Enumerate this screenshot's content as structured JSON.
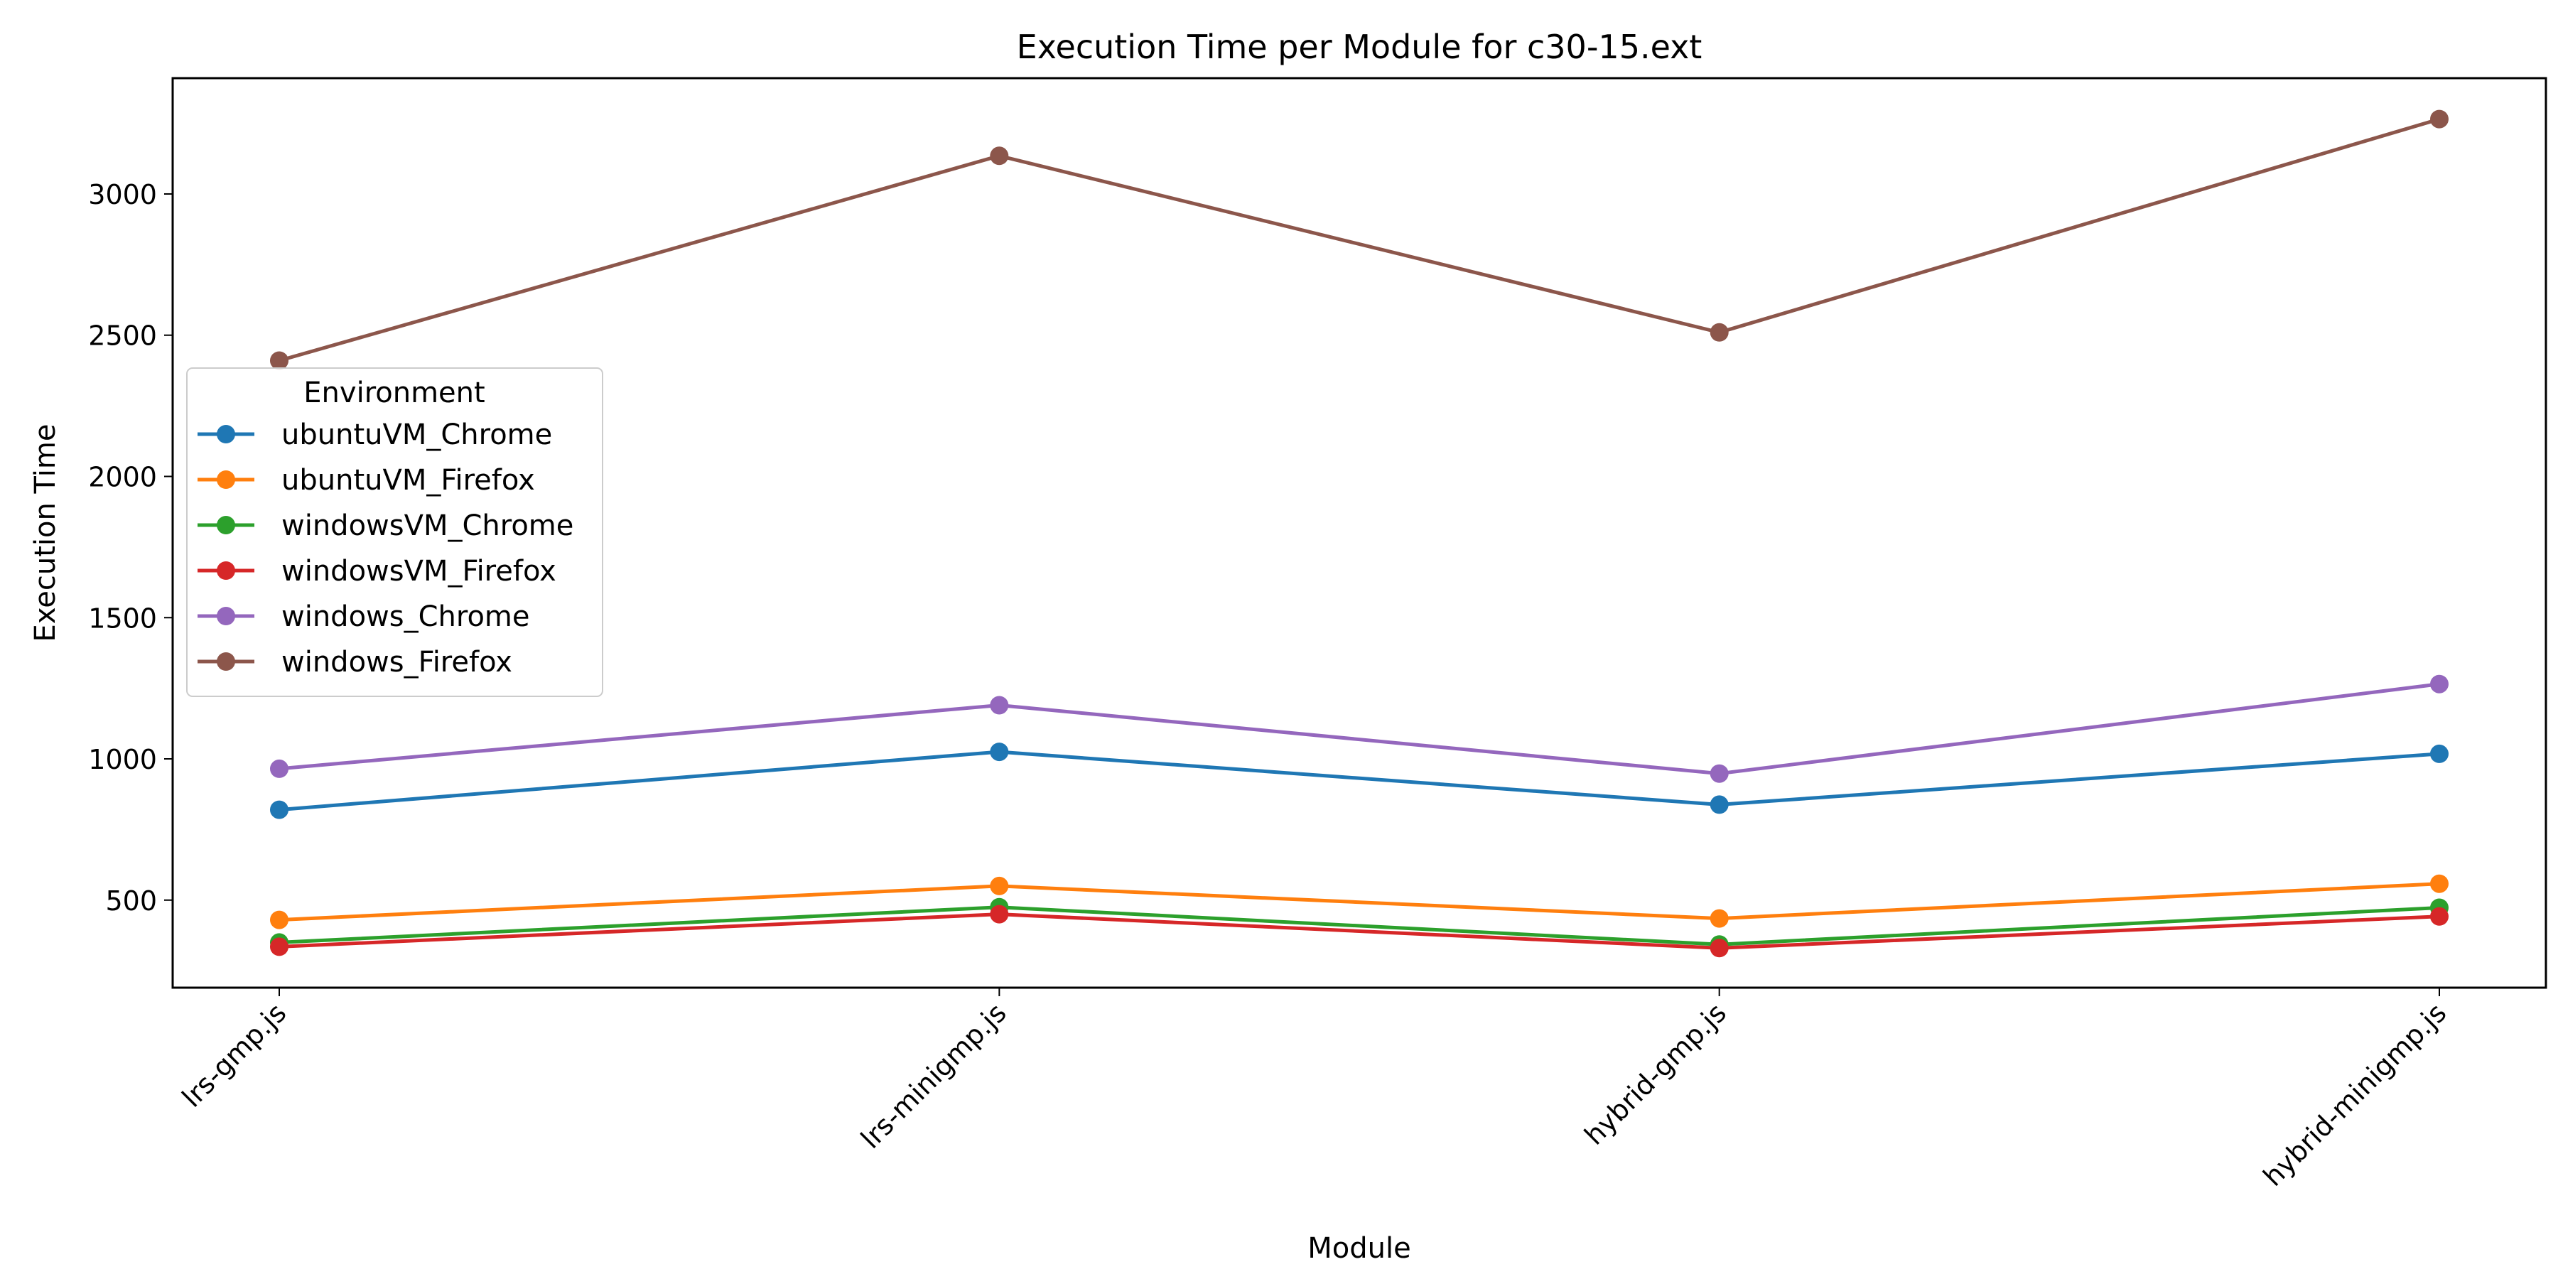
{
  "chart_data": {
    "type": "line",
    "title": "Execution Time per Module for c30-15.ext",
    "xlabel": "Module",
    "ylabel": "Execution Time",
    "categories": [
      "lrs-gmp.js",
      "lrs-minigmp.js",
      "hybrid-gmp.js",
      "hybrid-minigmp.js"
    ],
    "y_ticks": [
      500,
      1000,
      1500,
      2000,
      2500,
      3000
    ],
    "ylim": [
      190,
      3410
    ],
    "grid": false,
    "legend": {
      "title": "Environment",
      "placement": "center-left"
    },
    "series": [
      {
        "name": "ubuntuVM_Chrome",
        "color": "#1f77b4",
        "values": [
          820,
          1025,
          838,
          1018
        ]
      },
      {
        "name": "ubuntuVM_Firefox",
        "color": "#ff7f0e",
        "values": [
          430,
          550,
          435,
          558
        ]
      },
      {
        "name": "windowsVM_Chrome",
        "color": "#2ca02c",
        "values": [
          350,
          475,
          343,
          473
        ]
      },
      {
        "name": "windowsVM_Firefox",
        "color": "#d62728",
        "values": [
          335,
          450,
          330,
          442
        ]
      },
      {
        "name": "windows_Chrome",
        "color": "#9467bd",
        "values": [
          965,
          1190,
          948,
          1265
        ]
      },
      {
        "name": "windows_Firefox",
        "color": "#8c564b",
        "values": [
          2410,
          3135,
          2510,
          3265
        ]
      }
    ]
  }
}
